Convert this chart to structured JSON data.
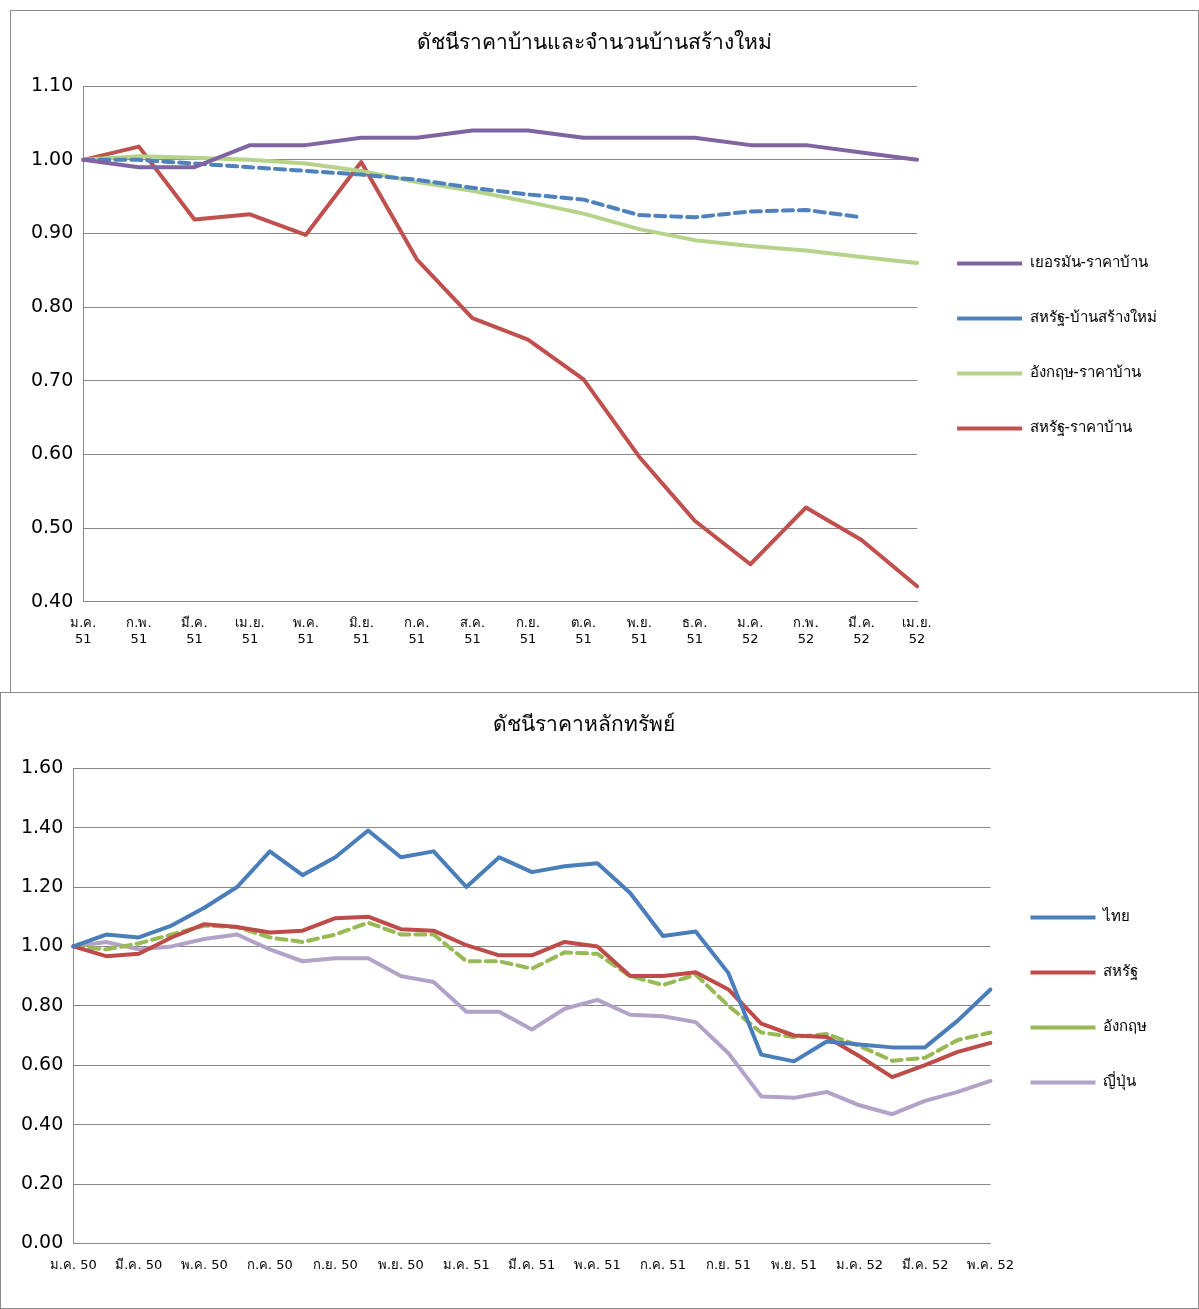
{
  "chart_data": [
    {
      "type": "line",
      "title": "ดัชนีราคาบ้านและจำนวนบ้านสร้างใหม่",
      "categories": [
        "ม.ค. 51",
        "ก.พ. 51",
        "มี.ค. 51",
        "เม.ย. 51",
        "พ.ค. 51",
        "มิ.ย. 51",
        "ก.ค. 51",
        "ส.ค. 51",
        "ก.ย. 51",
        "ต.ค. 51",
        "พ.ย. 51",
        "ธ.ค. 51",
        "ม.ค. 52",
        "ก.พ. 52",
        "มี.ค. 52",
        "เม.ย. 52"
      ],
      "series": [
        {
          "name": "เยอรมัน-ราคาบ้าน",
          "color": "#8064a2",
          "values": [
            1.0,
            0.99,
            0.99,
            1.02,
            1.02,
            1.03,
            1.03,
            1.04,
            1.04,
            1.03,
            1.03,
            1.03,
            1.02,
            1.02,
            1.01,
            1.0
          ]
        },
        {
          "name": "สหรัฐ-บ้านสร้างใหม่",
          "color": "#4f81bd",
          "line_style": "dashed",
          "values": [
            1.0,
            1.0,
            0.995,
            0.99,
            0.985,
            0.98,
            0.973,
            0.962,
            0.953,
            0.946,
            0.925,
            0.922,
            0.93,
            0.932,
            0.922,
            null
          ]
        },
        {
          "name": "อังกฤษ-ราคาบ้าน",
          "color": "#b5d48a",
          "values": [
            1.0,
            1.005,
            1.003,
            1.0,
            0.995,
            0.985,
            0.97,
            0.958,
            0.943,
            0.927,
            0.906,
            0.891,
            0.883,
            0.877,
            0.868,
            0.86
          ]
        },
        {
          "name": "สหรัฐ-ราคาบ้าน",
          "color": "#c0504d",
          "values": [
            1.0,
            1.018,
            0.919,
            0.926,
            0.898,
            0.997,
            0.865,
            0.785,
            0.756,
            0.702,
            0.597,
            0.51,
            0.451,
            0.528,
            0.484,
            0.421
          ]
        }
      ],
      "ylim": [
        0.4,
        1.1
      ],
      "yticks": [
        {
          "value": 0.4,
          "label": "0.40"
        },
        {
          "value": 0.5,
          "label": "0.50"
        },
        {
          "value": 0.6,
          "label": "0.60"
        },
        {
          "value": 0.7,
          "label": "0.70"
        },
        {
          "value": 0.8,
          "label": "0.80"
        },
        {
          "value": 0.9,
          "label": "0.90"
        },
        {
          "value": 1.0,
          "label": "1.00"
        },
        {
          "value": 1.1,
          "label": "1.10"
        }
      ],
      "grid": "y",
      "legend": "right",
      "marker": "none"
    },
    {
      "type": "line",
      "title": "ดัชนีราคาหลักทรัพย์",
      "categories": [
        "ม.ค. 50",
        null,
        "มี.ค. 50",
        null,
        "พ.ค. 50",
        null,
        "ก.ค. 50",
        null,
        "ก.ย. 50",
        null,
        "พ.ย. 50",
        null,
        "ม.ค. 51",
        null,
        "มี.ค. 51",
        null,
        "พ.ค. 51",
        null,
        "ก.ค. 51",
        null,
        "ก.ย. 51",
        null,
        "พ.ย. 51",
        null,
        "ม.ค. 52",
        null,
        "มี.ค. 52",
        null,
        "พ.ค. 52"
      ],
      "series": [
        {
          "name": "ไทย",
          "color": "#4a7ebb",
          "values": [
            1.0,
            1.04,
            1.03,
            1.07,
            1.13,
            1.2,
            1.32,
            1.24,
            1.3,
            1.39,
            1.3,
            1.32,
            1.2,
            1.3,
            1.25,
            1.27,
            1.28,
            1.18,
            1.035,
            1.05,
            0.91,
            0.636,
            0.613,
            0.68,
            0.67,
            0.66,
            0.66,
            0.75,
            0.855
          ]
        },
        {
          "name": "สหรัฐ",
          "color": "#be4b48",
          "values": [
            1.0,
            0.967,
            0.975,
            1.03,
            1.075,
            1.065,
            1.047,
            1.053,
            1.095,
            1.1,
            1.058,
            1.053,
            1.004,
            0.97,
            0.97,
            1.015,
            1.0,
            0.9,
            0.9,
            0.913,
            0.855,
            0.74,
            0.7,
            0.695,
            0.63,
            0.56,
            0.6,
            0.645,
            0.675
          ]
        },
        {
          "name": "อังกฤษ",
          "color": "#98b954",
          "line_style": "dashed",
          "values": [
            1.0,
            0.99,
            1.01,
            1.04,
            1.07,
            1.065,
            1.03,
            1.015,
            1.04,
            1.08,
            1.04,
            1.04,
            0.95,
            0.95,
            0.925,
            0.98,
            0.975,
            0.9,
            0.87,
            0.905,
            0.8,
            0.71,
            0.695,
            0.705,
            0.665,
            0.615,
            0.625,
            0.685,
            0.71
          ]
        },
        {
          "name": "ญี่ปุ่น",
          "color": "#b3a2c7",
          "values": [
            1.0,
            1.015,
            0.99,
            1.0,
            1.025,
            1.04,
            0.99,
            0.95,
            0.96,
            0.96,
            0.9,
            0.88,
            0.78,
            0.78,
            0.72,
            0.79,
            0.82,
            0.77,
            0.765,
            0.745,
            0.64,
            0.495,
            0.49,
            0.51,
            0.465,
            0.435,
            0.48,
            0.51,
            0.547
          ]
        }
      ],
      "ylim": [
        0,
        1.6
      ],
      "yticks": [
        {
          "value": 0,
          "label": "0.00"
        },
        {
          "value": 0.2,
          "label": "0.20"
        },
        {
          "value": 0.4,
          "label": "0.40"
        },
        {
          "value": 0.6,
          "label": "0.60"
        },
        {
          "value": 0.8,
          "label": "0.80"
        },
        {
          "value": 1.0,
          "label": "1.00"
        },
        {
          "value": 1.2,
          "label": "1.20"
        },
        {
          "value": 1.4,
          "label": "1.40"
        },
        {
          "value": 1.6,
          "label": "1.60"
        }
      ],
      "grid": "y",
      "legend": "right",
      "marker": "none"
    }
  ]
}
